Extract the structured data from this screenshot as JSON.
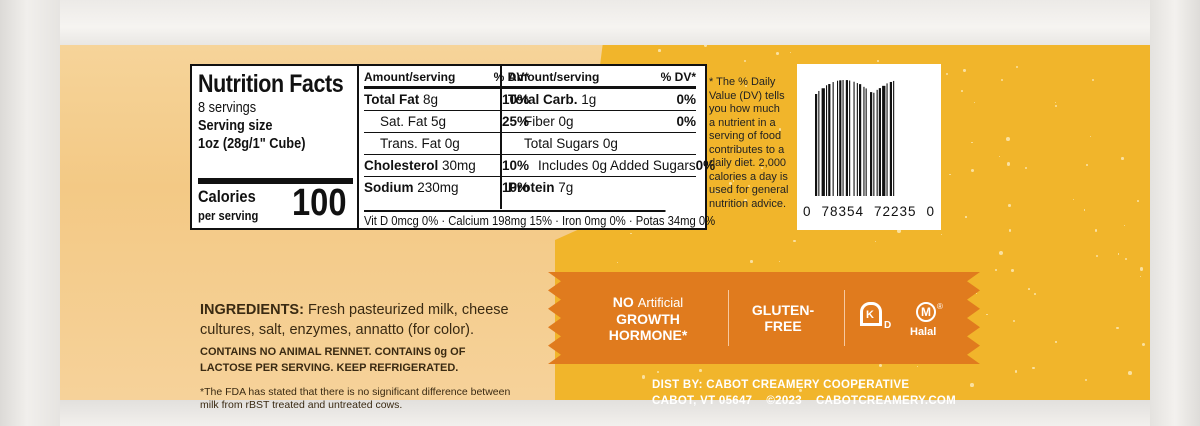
{
  "nutrition": {
    "title": "Nutrition Facts",
    "servings": "8 servings",
    "serving_size_label": "Serving size",
    "serving_size_value": "1oz (28g/1\" Cube)",
    "calories_label": "Calories",
    "calories_sub": "per serving",
    "calories_value": "100",
    "header_amount": "Amount/serving",
    "header_dv": "% DV*",
    "col1": [
      {
        "label": "Total Fat",
        "amount": "8g",
        "dv": "10%",
        "bold": true
      },
      {
        "label": "Sat. Fat",
        "amount": "5g",
        "dv": "25%",
        "bold": false
      },
      {
        "label": "Trans. Fat",
        "amount": "0g",
        "dv": "",
        "bold": false
      },
      {
        "label": "Cholesterol",
        "amount": "30mg",
        "dv": "10%",
        "bold": true
      },
      {
        "label": "Sodium",
        "amount": "230mg",
        "dv": "10%",
        "bold": true
      }
    ],
    "col2": [
      {
        "label": "Total Carb.",
        "amount": "1g",
        "dv": "0%",
        "bold": true
      },
      {
        "label": "Fiber",
        "amount": "0g",
        "dv": "0%",
        "bold": false
      },
      {
        "label": "Total Sugars",
        "amount": "0g",
        "dv": "",
        "bold": false
      },
      {
        "label": "Includes 0g Added Sugars",
        "amount": "",
        "dv": "0%",
        "bold": false
      },
      {
        "label": "Protein",
        "amount": "7g",
        "dv": "",
        "bold": true
      }
    ],
    "micronutrients": "Vit D 0mcg 0% · Calcium 198mg 15% · Iron 0mg 0% · Potas 34mg 0%",
    "dv_note": "* The % Daily Value (DV) tells you how much a nutrient in a serving of food contributes to a daily diet. 2,000 calories a day is used for general nutrition advice."
  },
  "barcode": {
    "digits": [
      "0",
      "78354",
      "72235",
      "0"
    ]
  },
  "ingredients": {
    "label": "INGREDIENTS:",
    "text": "Fresh pasteurized milk, cheese cultures, salt, enzymes, annatto (for color).",
    "caps_note": "CONTAINS NO ANIMAL RENNET. CONTAINS 0g OF LACTOSE PER SERVING. KEEP REFRIGERATED.",
    "fda_note": "*The FDA has stated that there is no significant difference between milk from rBST treated and untreated cows."
  },
  "badges": {
    "no": "NO",
    "artificial": "Artificial",
    "growth": "GROWTH",
    "hormone": "HORMONE*",
    "gluten1": "GLUTEN-",
    "gluten2": "FREE",
    "kosher_k": "K",
    "kosher_d": "D",
    "halal_m": "M",
    "halal_r": "®",
    "halal": "Halal"
  },
  "distributor": {
    "line1": "DIST BY: CABOT CREAMERY COOPERATIVE",
    "city": "CABOT, VT 05647",
    "year": "©2023",
    "web": "CABOTCREAMERY.COM"
  },
  "colors": {
    "ribbon": "#e07b1e",
    "cheese_dark": "#f1b52b",
    "cheese_light": "#f6d49a"
  }
}
